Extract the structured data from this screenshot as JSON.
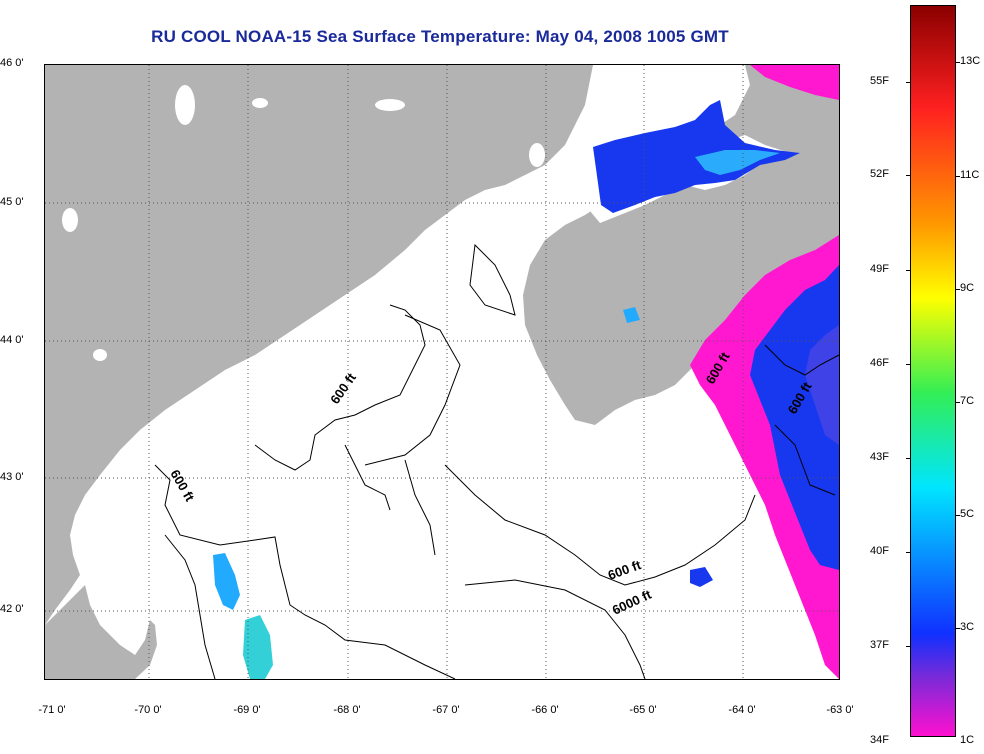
{
  "title": "RU COOL  NOAA-15  Sea Surface Temperature:  May 04, 2008 1005 GMT",
  "axes": {
    "lat_ticks": [
      {
        "label": "46 0'",
        "value": 46
      },
      {
        "label": "45 0'",
        "value": 45
      },
      {
        "label": "44 0'",
        "value": 44
      },
      {
        "label": "43 0'",
        "value": 43
      },
      {
        "label": "42 0'",
        "value": 42
      }
    ],
    "lon_ticks": [
      {
        "label": "-71 0'",
        "value": -71
      },
      {
        "label": "-70 0'",
        "value": -70
      },
      {
        "label": "-69 0'",
        "value": -69
      },
      {
        "label": "-68 0'",
        "value": -68
      },
      {
        "label": "-67 0'",
        "value": -67
      },
      {
        "label": "-66 0'",
        "value": -66
      },
      {
        "label": "-65 0'",
        "value": -65
      },
      {
        "label": "-64 0'",
        "value": -64
      },
      {
        "label": "-63 0'",
        "value": -63
      }
    ],
    "lon_range": [
      -71,
      -63
    ],
    "lat_range": [
      41.5,
      46.05
    ]
  },
  "contour_labels": [
    {
      "text": "600 ft",
      "rotate": -55
    },
    {
      "text": "600 ft",
      "rotate": 60
    },
    {
      "text": "600 ft",
      "rotate": -20
    },
    {
      "text": "6000 ft",
      "rotate": -25
    },
    {
      "text": "600 ft",
      "rotate": -60
    },
    {
      "text": "600 ft",
      "rotate": -60
    }
  ],
  "colorbar": {
    "fahrenheit_labels": [
      "55F",
      "52F",
      "49F",
      "46F",
      "43F",
      "40F",
      "37F",
      "34F"
    ],
    "celsius_labels": [
      "13C",
      "11C",
      "9C",
      "7C",
      "5C",
      "3C",
      "1C"
    ],
    "colors": {
      "top": "#8b0000",
      "red": "#ff2020",
      "orange": "#ff9900",
      "yellow": "#ffff00",
      "green": "#33ee55",
      "cyan": "#00e5ff",
      "blue": "#1030ff",
      "purple": "#7a2ad8",
      "magenta": "#ff10d0"
    }
  },
  "colors": {
    "land": "#b3b3b3",
    "water": "#ffffff",
    "title": "#1a2a9a"
  }
}
